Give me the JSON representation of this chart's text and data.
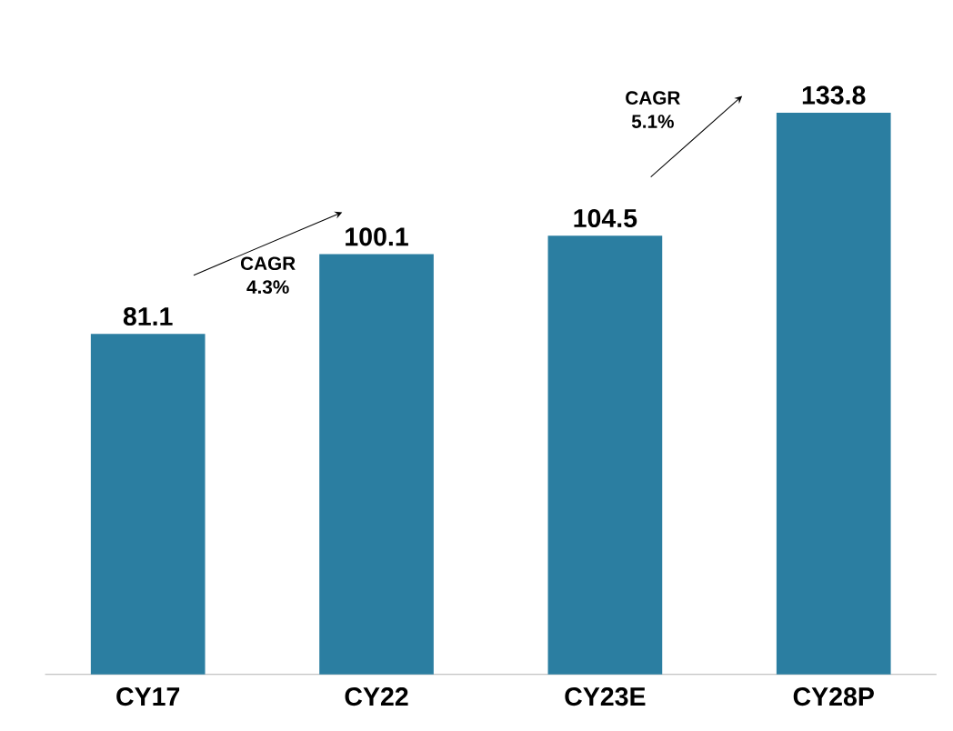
{
  "chart_data": {
    "type": "bar",
    "categories": [
      "CY17",
      "CY22",
      "CY23E",
      "CY28P"
    ],
    "values": [
      81.1,
      100.1,
      104.5,
      133.8
    ],
    "color": "#2b7ea1",
    "data_labels": true,
    "annotations": [
      "CAGR 4.3%",
      "CAGR 5.1%"
    ]
  }
}
